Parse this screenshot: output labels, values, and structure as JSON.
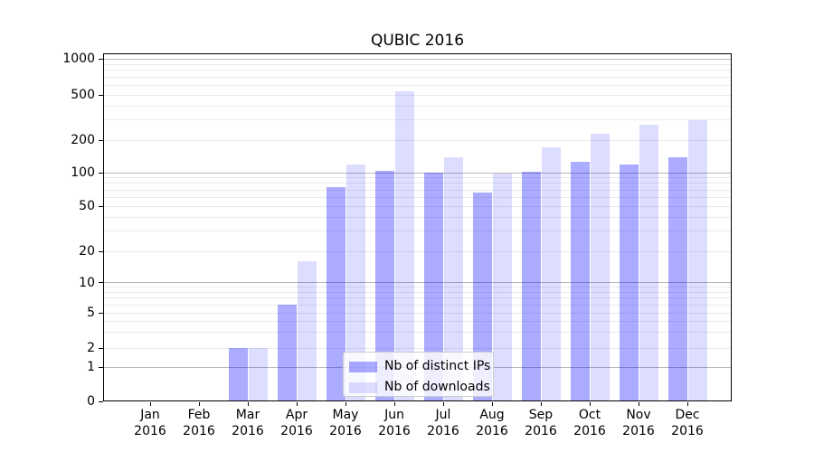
{
  "chart_data": {
    "type": "bar",
    "title": "QUBIC 2016",
    "months": [
      "Jan",
      "Feb",
      "Mar",
      "Apr",
      "May",
      "Jun",
      "Jul",
      "Aug",
      "Sep",
      "Oct",
      "Nov",
      "Dec"
    ],
    "year": "2016",
    "categories": [
      "Jan 2016",
      "Feb 2016",
      "Mar 2016",
      "Apr 2016",
      "May 2016",
      "Jun 2016",
      "Jul 2016",
      "Aug 2016",
      "Sep 2016",
      "Oct 2016",
      "Nov 2016",
      "Dec 2016"
    ],
    "series": [
      {
        "name": "Nb of distinct IPs",
        "color_hex": "#ababff",
        "color_rgba": "rgba(0,0,255,0.33)",
        "values": [
          0,
          0,
          2,
          6,
          74,
          103,
          100,
          66,
          102,
          126,
          119,
          140
        ]
      },
      {
        "name": "Nb of downloads",
        "color_hex": "#ddddff",
        "color_rgba": "rgba(0,0,255,0.135)",
        "values": [
          0,
          0,
          2,
          16,
          118,
          535,
          140,
          98,
          172,
          226,
          272,
          297
        ]
      }
    ],
    "yscale": "symlog",
    "yticks": [
      0,
      1,
      2,
      5,
      10,
      20,
      50,
      100,
      200,
      500,
      1000
    ],
    "ytick_labels": [
      "0",
      "1",
      "2",
      "5",
      "10",
      "20",
      "50",
      "100",
      "200",
      "500",
      "1000"
    ],
    "ylim": [
      0,
      1100
    ],
    "grid": {
      "horizontal": true,
      "minor": true,
      "major_color": "#b8b8b8",
      "minor_color": "#ebebeb"
    },
    "legend": {
      "position": "lower center",
      "border_color": "#cccccc"
    }
  }
}
